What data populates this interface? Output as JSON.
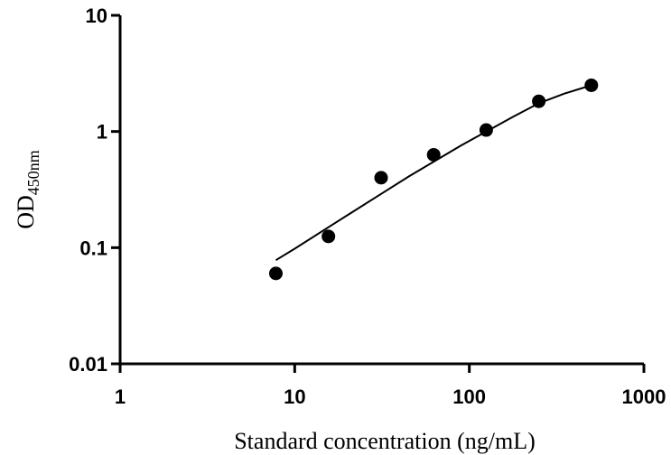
{
  "chart_data": {
    "type": "scatter",
    "title": "",
    "xlabel": "Standard concentration (ng/mL)",
    "ylabel_main": "OD",
    "ylabel_sub": "450nm",
    "x_scale": "log",
    "y_scale": "log",
    "xlim": [
      1,
      1000
    ],
    "ylim": [
      0.01,
      10
    ],
    "x_ticks": [
      "1",
      "10",
      "100",
      "1000"
    ],
    "y_ticks": [
      "0.01",
      "0.1",
      "1",
      "10"
    ],
    "grid": false,
    "legend": "none",
    "series": [
      {
        "x": [
          7.8,
          15.6,
          31.25,
          62.5,
          125,
          250,
          500
        ],
        "y": [
          0.06,
          0.125,
          0.4,
          0.63,
          1.03,
          1.82,
          2.5
        ]
      }
    ],
    "fit_curve": {
      "x": [
        7.8,
        10,
        15.6,
        20,
        31.25,
        45,
        62.5,
        90,
        125,
        180,
        250,
        350,
        500
      ],
      "y": [
        0.078,
        0.098,
        0.15,
        0.19,
        0.29,
        0.41,
        0.55,
        0.76,
        1.0,
        1.35,
        1.75,
        2.12,
        2.5
      ]
    }
  }
}
